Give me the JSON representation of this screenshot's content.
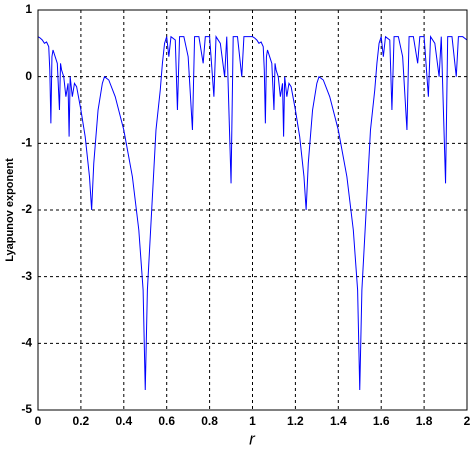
{
  "chart_data": {
    "type": "line",
    "xlabel": "r",
    "ylabel": "Lyapunov exponent",
    "x": [
      0,
      0.01,
      0.02,
      0.03,
      0.04,
      0.05,
      0.055,
      0.06,
      0.065,
      0.07,
      0.08,
      0.09,
      0.1,
      0.105,
      0.11,
      0.12,
      0.13,
      0.14,
      0.145,
      0.15,
      0.16,
      0.17,
      0.18,
      0.2,
      0.22,
      0.24,
      0.25,
      0.26,
      0.28,
      0.3,
      0.31,
      0.33,
      0.36,
      0.4,
      0.44,
      0.47,
      0.49,
      0.5,
      0.51,
      0.53,
      0.55,
      0.57,
      0.58,
      0.59,
      0.6,
      0.61,
      0.62,
      0.64,
      0.65,
      0.66,
      0.68,
      0.7,
      0.72,
      0.73,
      0.75,
      0.77,
      0.78,
      0.8,
      0.82,
      0.83,
      0.85,
      0.87,
      0.88,
      0.9,
      0.91,
      0.93,
      0.95,
      0.96,
      0.98,
      1,
      1.01,
      1.02,
      1.03,
      1.04,
      1.05,
      1.055,
      1.06,
      1.065,
      1.07,
      1.08,
      1.09,
      1.1,
      1.105,
      1.11,
      1.12,
      1.13,
      1.14,
      1.145,
      1.15,
      1.16,
      1.17,
      1.18,
      1.2,
      1.22,
      1.24,
      1.25,
      1.26,
      1.28,
      1.3,
      1.31,
      1.33,
      1.36,
      1.4,
      1.44,
      1.47,
      1.49,
      1.5,
      1.51,
      1.53,
      1.55,
      1.57,
      1.58,
      1.59,
      1.6,
      1.61,
      1.62,
      1.64,
      1.65,
      1.66,
      1.68,
      1.7,
      1.72,
      1.73,
      1.75,
      1.77,
      1.78,
      1.8,
      1.82,
      1.83,
      1.85,
      1.87,
      1.88,
      1.9,
      1.91,
      1.93,
      1.95,
      1.96,
      1.98,
      2
    ],
    "values": [
      0.6,
      0.58,
      0.55,
      0.5,
      0.52,
      0.45,
      0.1,
      -0.7,
      0.3,
      0.4,
      0.3,
      0.2,
      -0.5,
      0.2,
      0.1,
      0,
      -0.3,
      -0.1,
      -0.9,
      0,
      -0.3,
      -0.1,
      -0.15,
      -0.5,
      -0.9,
      -1.5,
      -2,
      -1.3,
      -0.5,
      -0.1,
      0,
      -0.05,
      -0.3,
      -0.8,
      -1.5,
      -2.3,
      -3.2,
      -4.7,
      -3.2,
      -2,
      -0.8,
      -0.2,
      0.2,
      0.5,
      0.6,
      0.3,
      0.6,
      0.55,
      -0.5,
      0.6,
      0.6,
      0.3,
      -0.8,
      0.6,
      0.6,
      0.2,
      0.6,
      0.6,
      -0.3,
      0.6,
      0.5,
      0,
      0.6,
      -1.6,
      0.6,
      0.6,
      0,
      0.6,
      0.6,
      0.6,
      0.58,
      0.55,
      0.5,
      0.52,
      0.45,
      0.1,
      -0.7,
      0.3,
      0.4,
      0.3,
      0.2,
      -0.5,
      0.2,
      0.1,
      0,
      -0.3,
      -0.1,
      -0.9,
      0,
      -0.3,
      -0.1,
      -0.15,
      -0.5,
      -0.9,
      -1.5,
      -2,
      -1.3,
      -0.5,
      -0.1,
      0,
      -0.05,
      -0.3,
      -0.8,
      -1.5,
      -2.3,
      -3.2,
      -4.7,
      -3.2,
      -2,
      -0.8,
      -0.2,
      0.2,
      0.5,
      0.6,
      0.3,
      0.6,
      0.55,
      -0.5,
      0.6,
      0.6,
      0.3,
      -0.8,
      0.6,
      0.6,
      0.2,
      0.6,
      0.6,
      -0.3,
      0.6,
      0.5,
      0,
      0.6,
      -1.6,
      0.6,
      0.6,
      0,
      0.6,
      0.6,
      0.55
    ],
    "color": "#0000ff",
    "xlim": [
      0,
      2
    ],
    "xticks": [
      0,
      0.2,
      0.4,
      0.6,
      0.8,
      1,
      1.2,
      1.4,
      1.6,
      1.8,
      2
    ],
    "ylim": [
      -5,
      1
    ],
    "yticks": [
      -5,
      -4,
      -3,
      -2,
      -1,
      0,
      1
    ],
    "grid": true
  }
}
